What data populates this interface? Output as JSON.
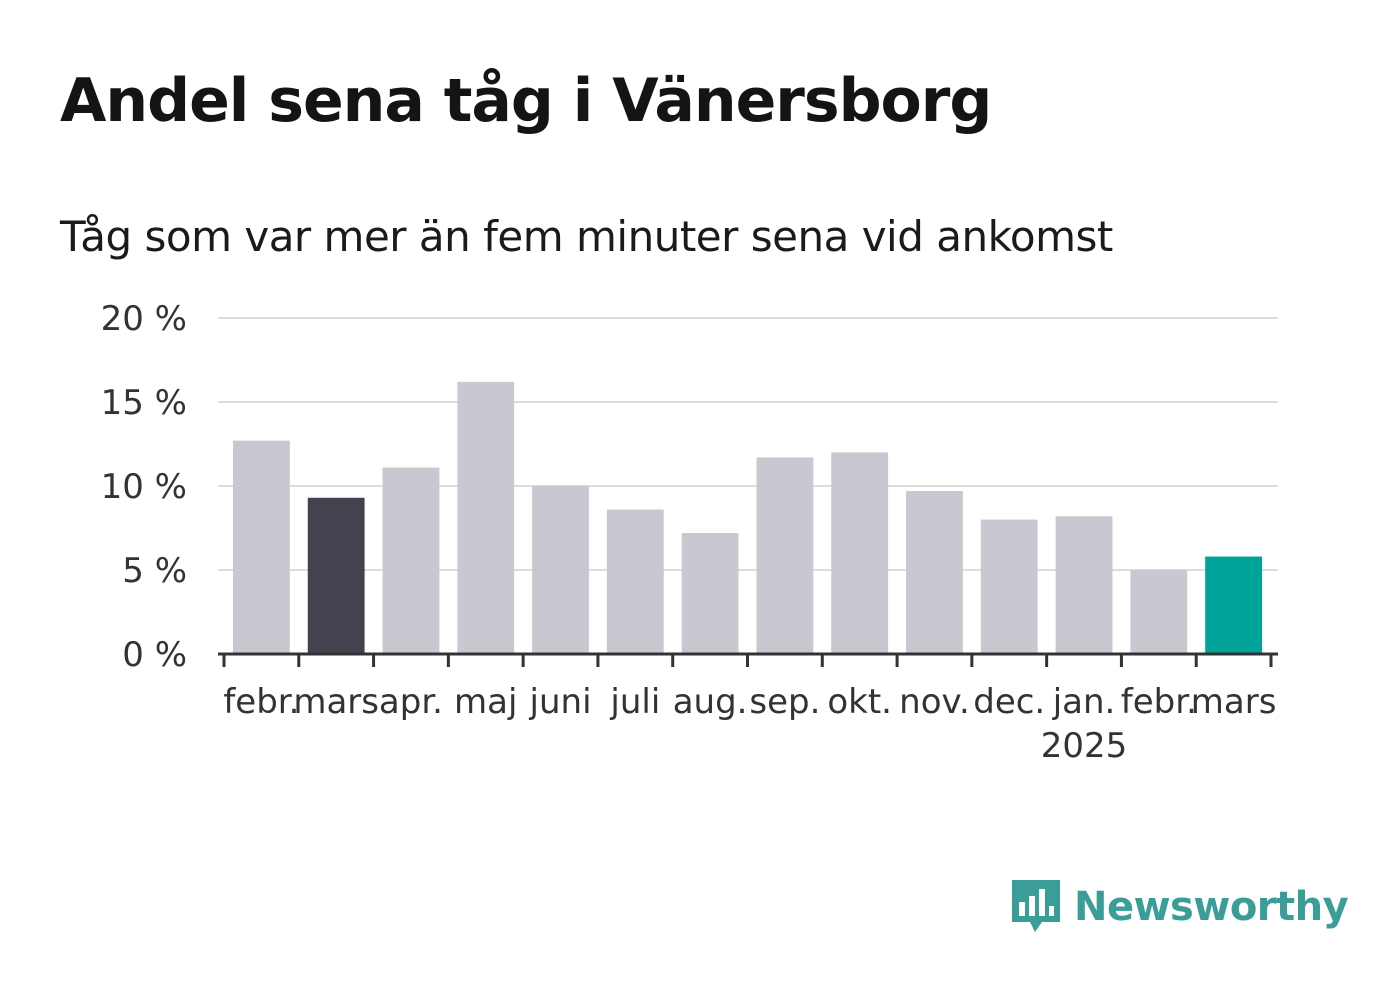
{
  "title": "Andel sena tåg i Vänersborg",
  "subtitle": "Tåg som var mer än fem minuter sena vid ankomst",
  "logo": {
    "text": "Newsworthy",
    "icon": "newsworthy-chart-bubble-icon",
    "color": "#3b9d98"
  },
  "chart_data": {
    "type": "bar",
    "categories": [
      "febr.",
      "mars",
      "apr.",
      "maj",
      "juni",
      "juli",
      "aug.",
      "sep.",
      "okt.",
      "nov.",
      "dec.",
      "jan.",
      "febr.",
      "mars"
    ],
    "year_labels": [
      "",
      "",
      "",
      "",
      "",
      "",
      "",
      "",
      "",
      "",
      "",
      "2025",
      "",
      ""
    ],
    "values": [
      12.7,
      9.3,
      11.1,
      16.2,
      10.0,
      8.6,
      7.2,
      11.7,
      12.0,
      9.7,
      8.0,
      8.2,
      5.0,
      5.8
    ],
    "highlight": {
      "1": "#44424f",
      "13": "#00a39a"
    },
    "default_color": "#c9c8d1",
    "yticks": [
      0,
      5,
      10,
      15,
      20
    ],
    "ytick_labels": [
      "0 %",
      "5 %",
      "10 %",
      "15 %",
      "20 %"
    ],
    "ylim": [
      0,
      20
    ],
    "grid": true,
    "xlabel": "",
    "ylabel": ""
  }
}
